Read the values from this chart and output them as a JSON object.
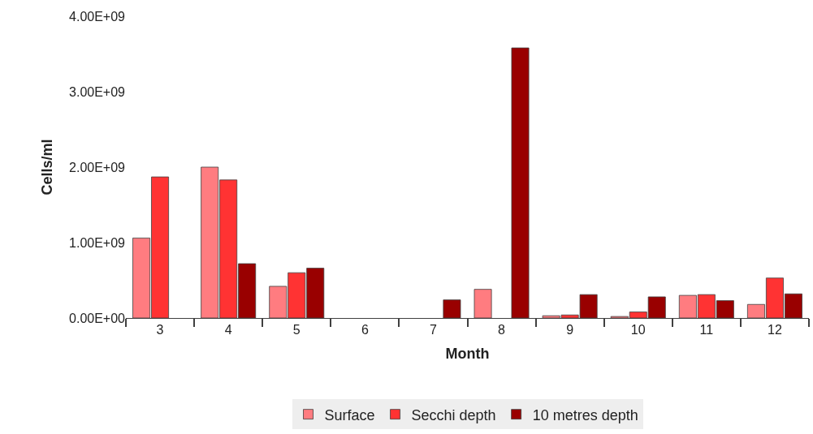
{
  "chart_data": {
    "type": "bar",
    "xlabel": "Month",
    "ylabel": "Cells/ml",
    "categories": [
      "3",
      "4",
      "5",
      "6",
      "7",
      "8",
      "9",
      "10",
      "11",
      "12"
    ],
    "series": [
      {
        "name": "Surface",
        "color": "#ff7c80",
        "values": [
          1060000000,
          2000000000,
          420000000,
          null,
          null,
          380000000,
          30000000,
          20000000,
          300000000,
          180000000
        ]
      },
      {
        "name": "Secchi depth",
        "color": "#ff3333",
        "values": [
          1870000000,
          1830000000,
          600000000,
          null,
          null,
          null,
          40000000,
          80000000,
          310000000,
          530000000
        ]
      },
      {
        "name": "10 metres depth",
        "color": "#990000",
        "values": [
          null,
          720000000,
          660000000,
          null,
          240000000,
          3580000000,
          310000000,
          280000000,
          230000000,
          320000000
        ]
      }
    ],
    "ylim": [
      0,
      4000000000
    ],
    "yticks": [
      {
        "value": 0,
        "label": "0.00E+00"
      },
      {
        "value": 1000000000,
        "label": "1.00E+09"
      },
      {
        "value": 2000000000,
        "label": "2.00E+09"
      },
      {
        "value": 3000000000,
        "label": "3.00E+09"
      },
      {
        "value": 4000000000,
        "label": "4.00E+09"
      }
    ],
    "legend": "bottom"
  }
}
